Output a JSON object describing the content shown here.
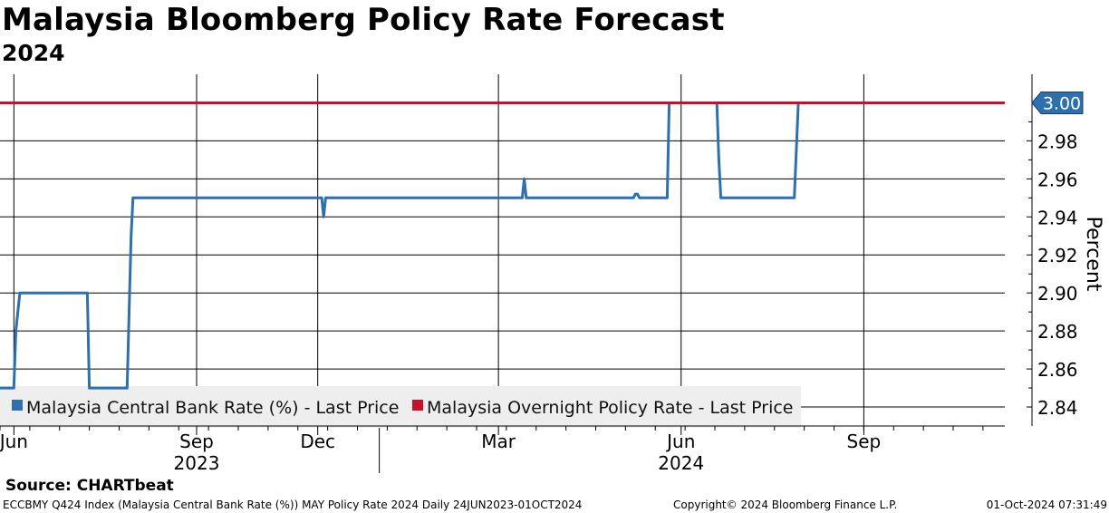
{
  "chart_data": {
    "type": "line",
    "title": "Malaysia Bloomberg Policy Rate Forecast",
    "subtitle": "2024",
    "ylabel": "Percent",
    "ylim": [
      2.83,
      3.015
    ],
    "yticks": [
      "2.84",
      "2.86",
      "2.88",
      "2.90",
      "2.92",
      "2.94",
      "2.96",
      "2.98"
    ],
    "ytick_values": [
      2.84,
      2.86,
      2.88,
      2.9,
      2.92,
      2.94,
      2.96,
      2.98
    ],
    "xlim_days": [
      0,
      506
    ],
    "month_ticks": [
      "Jun",
      "Sep",
      "Dec",
      "Mar",
      "Jun",
      "Sep"
    ],
    "month_tick_days": [
      7,
      99,
      160,
      251,
      343,
      435
    ],
    "year_labels": [
      "2023",
      "2024"
    ],
    "year_label_days": [
      99,
      343
    ],
    "year_separator_days": [
      191
    ],
    "last_value_label": "3.00",
    "grid": true,
    "legend_position": "bottom-left",
    "series": [
      {
        "name": "Malaysia Central Bank Rate (%) - Last Price",
        "color": "#2e6fad",
        "x": [
          0,
          7,
          8,
          10,
          44,
          45,
          64,
          66,
          67,
          162,
          163,
          164,
          165,
          263,
          264,
          265,
          319,
          320,
          321,
          322,
          336,
          337,
          361,
          362,
          363,
          400,
          402
        ],
        "y": [
          2.85,
          2.85,
          2.88,
          2.9,
          2.9,
          2.85,
          2.85,
          2.93,
          2.95,
          2.95,
          2.94,
          2.95,
          2.95,
          2.95,
          2.96,
          2.95,
          2.95,
          2.952,
          2.952,
          2.95,
          2.95,
          3.0,
          3.0,
          2.97,
          2.95,
          2.95,
          3.0
        ]
      },
      {
        "name": "Malaysia Overnight Policy Rate - Last Price",
        "color": "#c8102e",
        "x": [
          0,
          506
        ],
        "y": [
          3.0,
          3.0
        ]
      }
    ]
  },
  "source": "Source: CHARTbeat",
  "footer": {
    "left": "ECCBMY Q424 Index (Malaysia Central Bank Rate (%)) MAY Policy Rate 2024  Daily 24JUN2023-01OCT2024",
    "mid": "Copyright© 2024 Bloomberg Finance L.P.",
    "right": "01-Oct-2024 07:31:49"
  }
}
